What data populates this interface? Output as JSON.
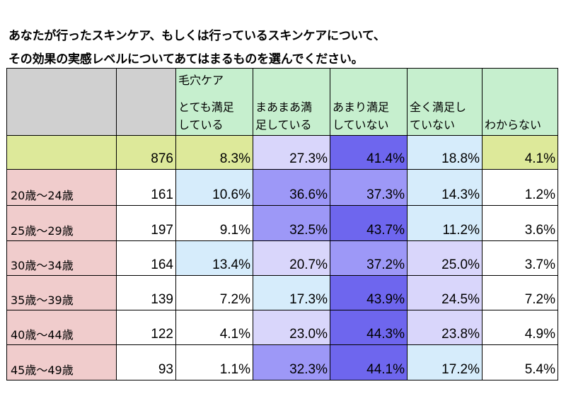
{
  "title_line1": "あなたが行ったスキンケア、もしくは行っているスキンケアについて、",
  "title_line2": "その効果の実感レベルについてあてはまるものを選んでください。",
  "colors": {
    "header_gray": "#d0d0d0",
    "header_green": "#c6efce",
    "total_row": "#dde99a",
    "age_label": "#f0cccc",
    "light_blue": "#d6ecfb",
    "lavender": "#d9d6fb",
    "mid_purple": "#9d98f7",
    "deep_purple": "#6e66ee",
    "white": "#ffffff"
  },
  "chart_data": {
    "type": "table",
    "title": "あなたが行ったスキンケア、もしくは行っているスキンケアについて、その効果の実感レベルについてあてはまるものを選んでください。",
    "group_header": "毛穴ケア",
    "columns": [
      {
        "line1": "とても満足",
        "line2": "している"
      },
      {
        "line1": "まあまあ満",
        "line2": "足している"
      },
      {
        "line1": "あまり満足",
        "line2": "していない"
      },
      {
        "line1": "全く満足し",
        "line2": "ていない"
      },
      {
        "line1": "",
        "line2": "わからない"
      }
    ],
    "rows": [
      {
        "label": "",
        "n": "876",
        "values": [
          "8.3%",
          "27.3%",
          "41.4%",
          "18.8%",
          "4.1%"
        ],
        "fills": [
          "total_row",
          "lavender",
          "deep_purple",
          "light_blue",
          "total_row"
        ]
      },
      {
        "label": "20歳～24歳",
        "n": "161",
        "values": [
          "10.6%",
          "36.6%",
          "37.3%",
          "14.3%",
          "1.2%"
        ],
        "fills": [
          "light_blue",
          "mid_purple",
          "mid_purple",
          "light_blue",
          "white"
        ]
      },
      {
        "label": "25歳～29歳",
        "n": "197",
        "values": [
          "9.1%",
          "32.5%",
          "43.7%",
          "11.2%",
          "3.6%"
        ],
        "fills": [
          "white",
          "mid_purple",
          "deep_purple",
          "light_blue",
          "white"
        ]
      },
      {
        "label": "30歳～34歳",
        "n": "164",
        "values": [
          "13.4%",
          "20.7%",
          "37.2%",
          "25.0%",
          "3.7%"
        ],
        "fills": [
          "light_blue",
          "lavender",
          "mid_purple",
          "lavender",
          "white"
        ]
      },
      {
        "label": "35歳～39歳",
        "n": "139",
        "values": [
          "7.2%",
          "17.3%",
          "43.9%",
          "24.5%",
          "7.2%"
        ],
        "fills": [
          "white",
          "light_blue",
          "deep_purple",
          "lavender",
          "white"
        ]
      },
      {
        "label": "40歳～44歳",
        "n": "122",
        "values": [
          "4.1%",
          "23.0%",
          "44.3%",
          "23.8%",
          "4.9%"
        ],
        "fills": [
          "white",
          "lavender",
          "deep_purple",
          "lavender",
          "white"
        ]
      },
      {
        "label": "45歳～49歳",
        "n": "93",
        "values": [
          "1.1%",
          "32.3%",
          "44.1%",
          "17.2%",
          "5.4%"
        ],
        "fills": [
          "white",
          "mid_purple",
          "deep_purple",
          "light_blue",
          "white"
        ]
      }
    ]
  }
}
